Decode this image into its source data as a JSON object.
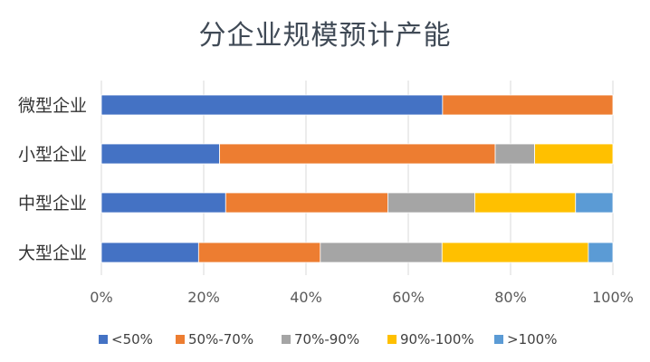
{
  "chart_data": {
    "type": "bar",
    "orientation": "horizontal",
    "stacked": "percent",
    "title": "分企业规模预计产能",
    "categories": [
      "微型企业",
      "小型企业",
      "中型企业",
      "大型企业"
    ],
    "series": [
      {
        "name": "<50%",
        "color": "#4472c4",
        "values": [
          66.7,
          23.1,
          24.3,
          19.0
        ]
      },
      {
        "name": "50%-70%",
        "color": "#ed7d31",
        "values": [
          33.3,
          53.9,
          31.7,
          23.8
        ]
      },
      {
        "name": "70%-90%",
        "color": "#a5a5a5",
        "values": [
          0,
          7.7,
          17.0,
          23.8
        ]
      },
      {
        "name": "90%-100%",
        "color": "#ffc000",
        "values": [
          0,
          15.3,
          19.7,
          28.6
        ]
      },
      {
        "name": ">100%",
        "color": "#5b9bd5",
        "values": [
          0,
          0,
          7.3,
          4.8
        ]
      }
    ],
    "xlim": [
      0,
      100
    ],
    "xticks": [
      "0%",
      "20%",
      "40%",
      "60%",
      "80%",
      "100%"
    ],
    "grid": "vertical",
    "legend_position": "bottom"
  }
}
